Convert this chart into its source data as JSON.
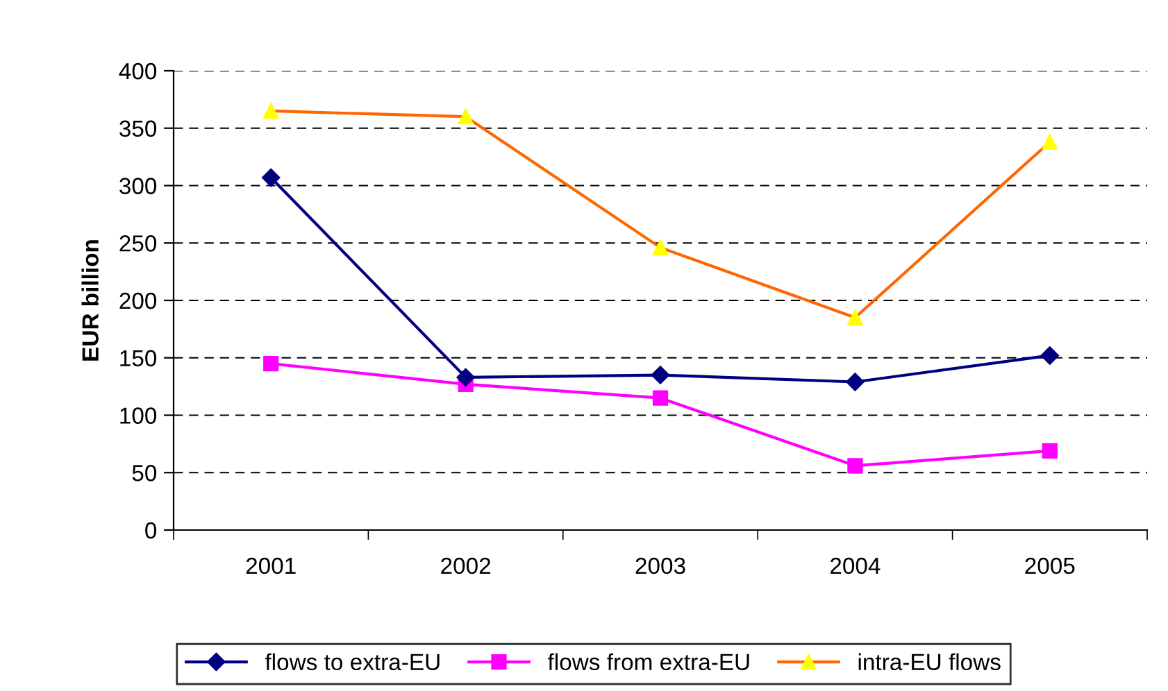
{
  "chart_data": {
    "type": "line",
    "ylabel": "EUR billion",
    "categories": [
      "2001",
      "2002",
      "2003",
      "2004",
      "2005"
    ],
    "series": [
      {
        "name": "flows to extra-EU",
        "color": "#000080",
        "marker": "diamond",
        "values": [
          307,
          133,
          135,
          129,
          152
        ]
      },
      {
        "name": "flows from extra-EU",
        "color": "#ff00ff",
        "marker": "square",
        "values": [
          145,
          127,
          115,
          56,
          69
        ]
      },
      {
        "name": "intra-EU flows",
        "color": "#ff6600",
        "marker": "triangle",
        "values": [
          365,
          360,
          246,
          185,
          338
        ]
      }
    ],
    "ylim": [
      0,
      400
    ],
    "yticks": [
      0,
      50,
      100,
      150,
      200,
      250,
      300,
      350,
      400
    ],
    "grid": "y",
    "line_style": "solid",
    "legend": "bottom"
  }
}
